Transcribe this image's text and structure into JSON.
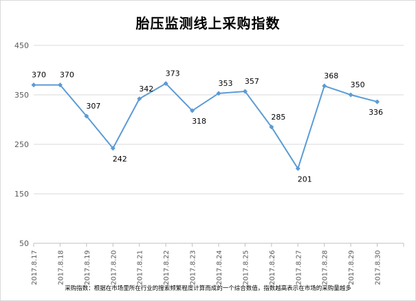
{
  "chart_data": {
    "type": "line",
    "title": "胎压监测线上采购指数",
    "footnote": "采购指数：根据在市场里所在行业的搜索频繁程度计算而成的一个综合数值，指数越高表示在市场的采购量越多",
    "categories": [
      "2017.8.17",
      "2017.8.18",
      "2017.8.19",
      "2017.8.20",
      "2017.8.21",
      "2017.8.22",
      "2017.8.23",
      "2017.8.24",
      "2017.8.25",
      "2017.8.26",
      "2017.8.27",
      "2017.8.28",
      "2017.8.29",
      "2017.8.30"
    ],
    "values": [
      370,
      370,
      307,
      242,
      342,
      373,
      318,
      353,
      357,
      285,
      201,
      368,
      350,
      336
    ],
    "ylim": [
      50,
      450
    ],
    "yticks": [
      "450",
      "350",
      "250",
      "150",
      "50"
    ],
    "grid": true,
    "legend": "none",
    "series_color": "#5b9bd5",
    "grid_color": "#d9d9d9"
  }
}
